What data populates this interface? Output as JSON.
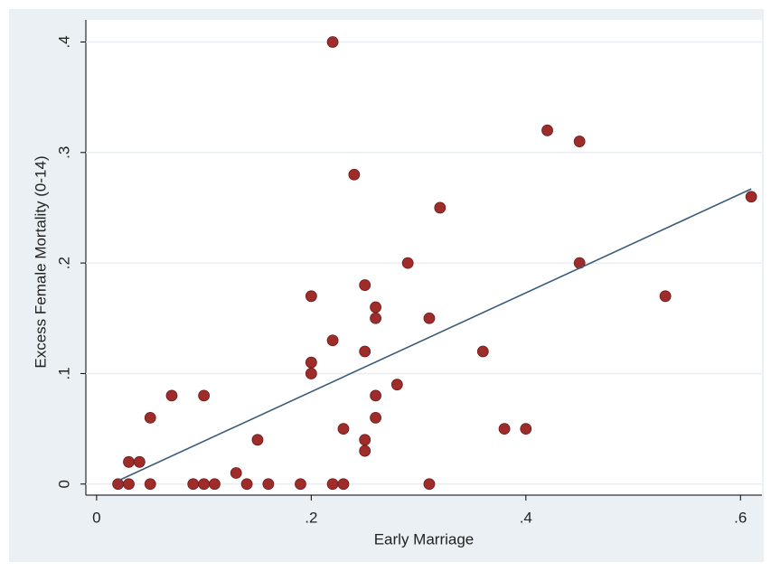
{
  "chart_data": {
    "type": "scatter",
    "x_label": "Early Marriage",
    "y_label": "Excess Female Mortality (0-14)",
    "color": "#9e2c2a",
    "x": [
      0.02,
      0.03,
      0.03,
      0.04,
      0.05,
      0.05,
      0.07,
      0.09,
      0.1,
      0.1,
      0.11,
      0.13,
      0.14,
      0.15,
      0.16,
      0.19,
      0.2,
      0.2,
      0.2,
      0.22,
      0.22,
      0.22,
      0.23,
      0.23,
      0.24,
      0.25,
      0.25,
      0.25,
      0.25,
      0.26,
      0.26,
      0.26,
      0.26,
      0.28,
      0.29,
      0.31,
      0.31,
      0.32,
      0.36,
      0.38,
      0.4,
      0.42,
      0.45,
      0.45,
      0.53,
      0.61
    ],
    "values": [
      0,
      0.02,
      0,
      0.02,
      0.06,
      0,
      0.08,
      0,
      0.08,
      0,
      0,
      0.01,
      0,
      0.04,
      0,
      0,
      0.17,
      0.11,
      0.1,
      0.4,
      0.13,
      0,
      0.05,
      0,
      0.28,
      0.18,
      0.12,
      0.04,
      0.03,
      0.16,
      0.15,
      0.08,
      0.06,
      0.09,
      0.2,
      0.15,
      0,
      0.25,
      0.12,
      0.05,
      0.05,
      0.32,
      0.31,
      0.2,
      0.17,
      0.26
    ],
    "fit_line": {
      "x": [
        0.02,
        0.61
      ],
      "values": [
        0.003,
        0.267
      ],
      "color": "#3c5b7a"
    },
    "xlim": [
      -0.01,
      0.62
    ],
    "ylim": [
      -0.01,
      0.42
    ],
    "xticks": [
      0,
      {
        "value": 0.2,
        "label": ".2"
      },
      {
        "value": 0.4,
        "label": ".4"
      },
      {
        "value": 0.6,
        "label": ".6"
      }
    ],
    "yticks": [
      0,
      {
        "value": 0.1,
        "label": ".1"
      },
      {
        "value": 0.2,
        "label": ".2"
      },
      {
        "value": 0.3,
        "label": ".3"
      },
      {
        "value": 0.4,
        "label": ".4"
      }
    ],
    "grid": true
  }
}
